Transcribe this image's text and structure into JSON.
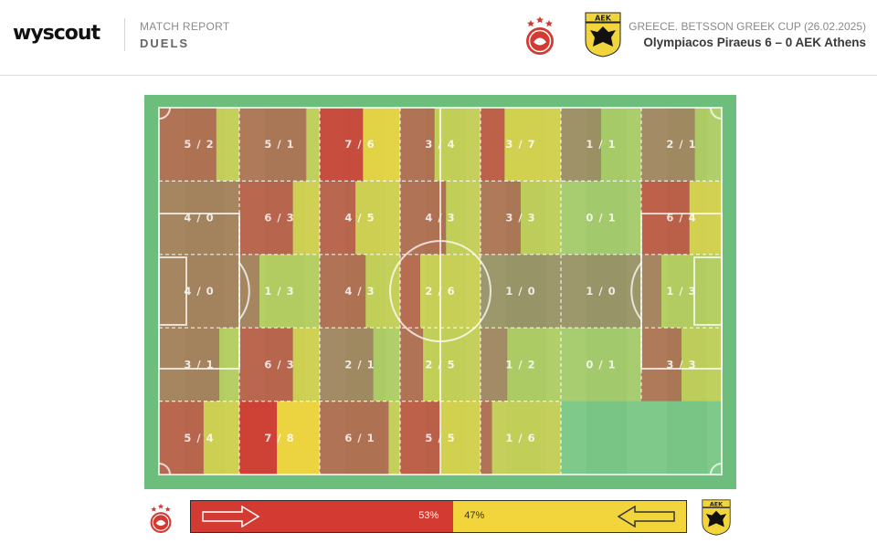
{
  "header": {
    "logo": "wyscout",
    "report_label": "MATCH REPORT",
    "report_title": "DUELS",
    "competition": "GREECE. BETSSON GREEK CUP (26.02.2025)",
    "result": "Olympiacos Piraeus 6 – 0 AEK Athens"
  },
  "colors": {
    "home": "#d33a32",
    "away": "#f2d43c",
    "pitch_green": "#7dc98a",
    "pitch_border": "#6dbd7c",
    "lines": "#ffffff"
  },
  "icons": {
    "home_crest": "olympiacos-crest-icon",
    "away_crest": "aek-crest-icon",
    "home_arrow": "arrow-right-icon",
    "away_arrow": "arrow-left-icon"
  },
  "chart_data": {
    "type": "heatmap",
    "grid": {
      "columns": 7,
      "rows": 5
    },
    "cells": [
      [
        "5 / 2",
        "5 / 1",
        "7 / 6",
        "3 / 4",
        "3 / 7",
        "1 / 1",
        "2 / 1"
      ],
      [
        "4 / 0",
        "6 / 3",
        "4 / 5",
        "4 / 3",
        "3 / 3",
        "0 / 1",
        "6 / 4"
      ],
      [
        "4 / 0",
        "1 / 3",
        "4 / 3",
        "2 / 6",
        "1 / 0",
        "1 / 0",
        "1 / 3"
      ],
      [
        "3 / 1",
        "6 / 3",
        "2 / 1",
        "2 / 5",
        "1 / 2",
        "0 / 1",
        "3 / 3"
      ],
      [
        "5 / 4",
        "7 / 8",
        "6 / 1",
        "5 / 5",
        "1 / 6",
        "",
        ""
      ]
    ],
    "balance": {
      "home_percent": 53,
      "away_percent": 47,
      "home_label": "53%",
      "away_label": "47%"
    }
  }
}
